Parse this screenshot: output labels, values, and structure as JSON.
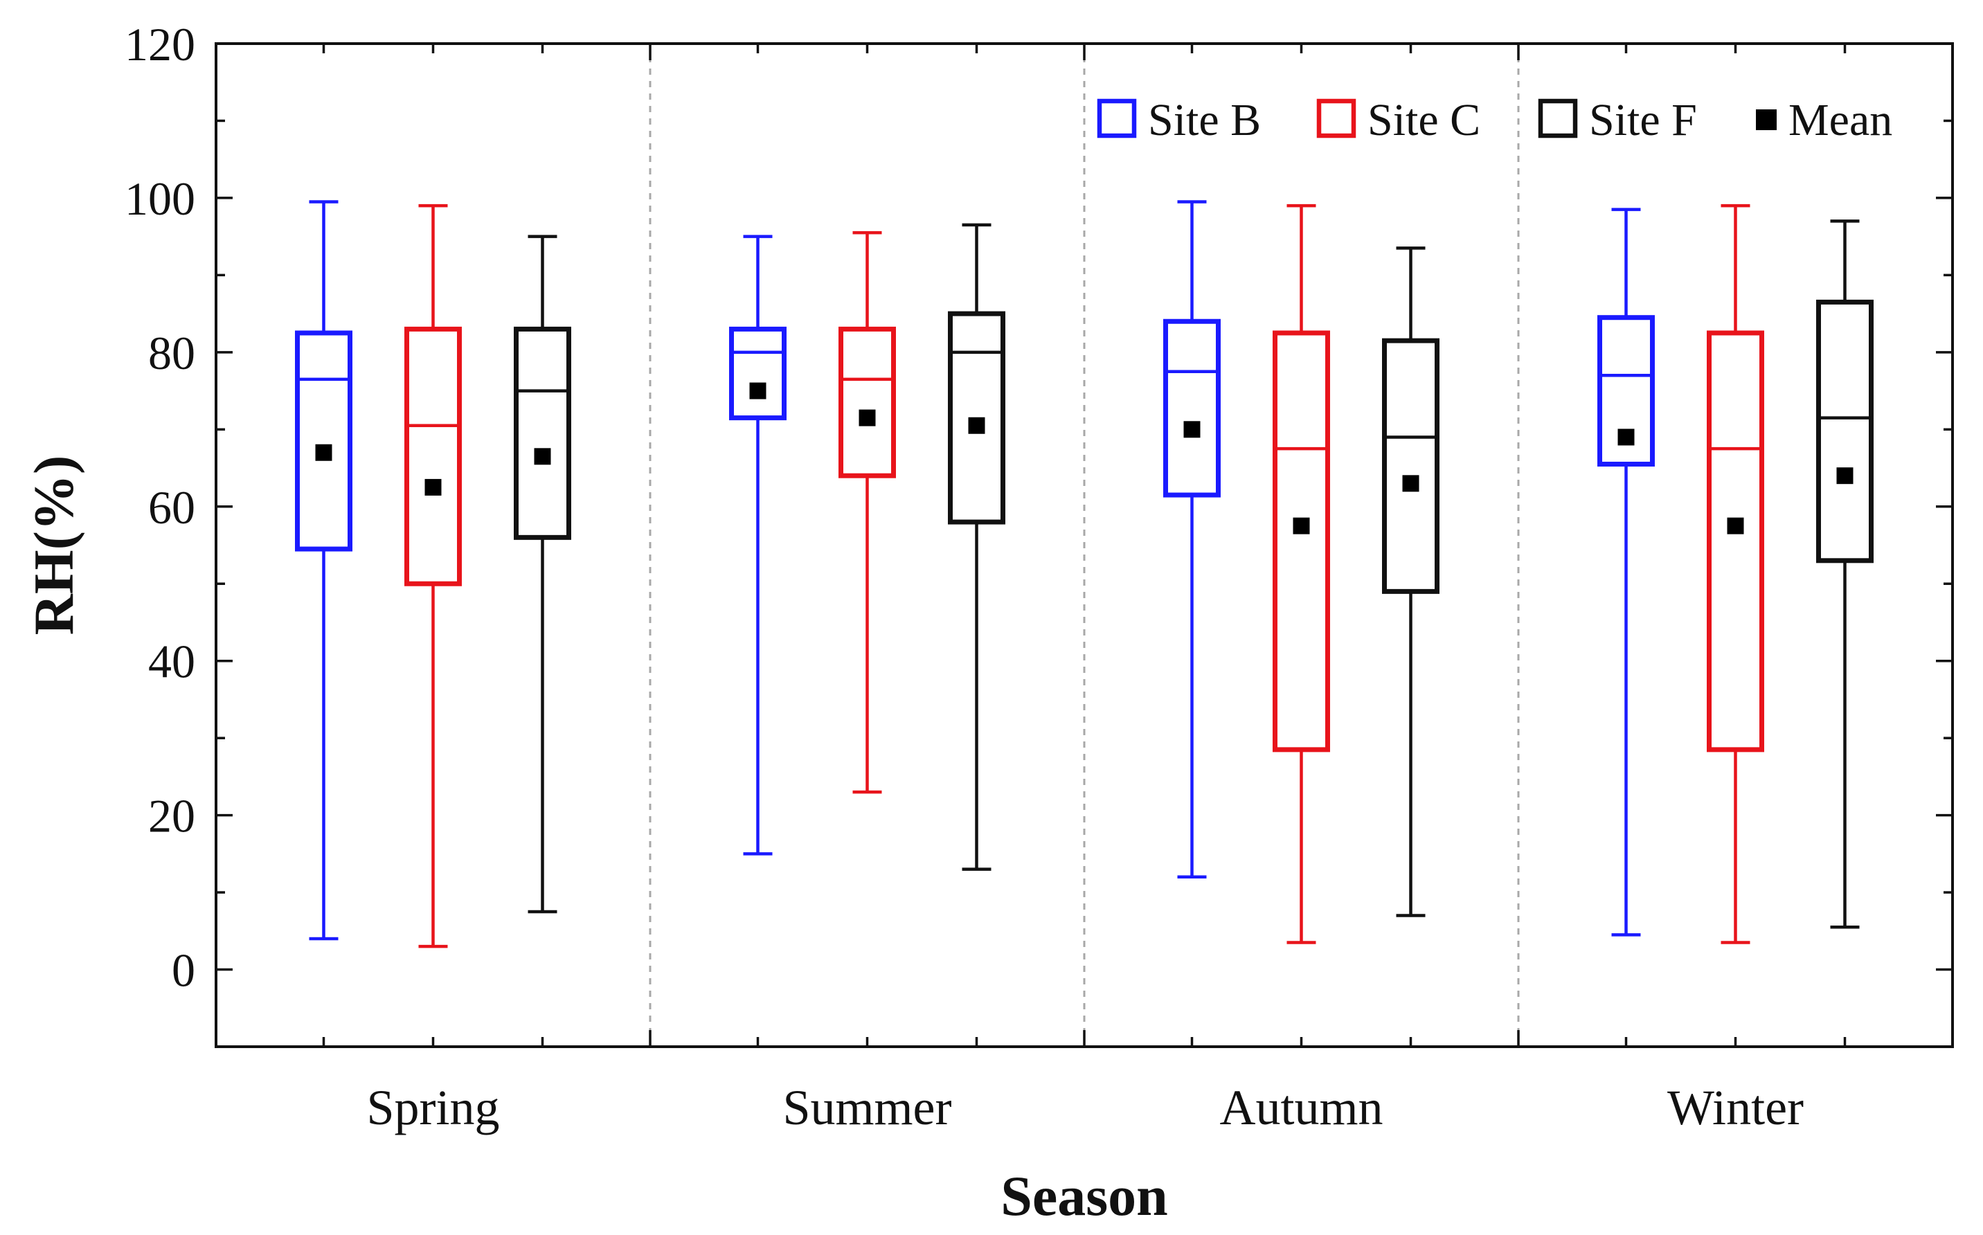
{
  "chart_data": {
    "type": "box",
    "title": "",
    "xlabel": "Season",
    "ylabel": "RH(%)",
    "ylim": [
      -10,
      120
    ],
    "yticks": [
      0,
      20,
      40,
      60,
      80,
      100,
      120
    ],
    "ytick_labels": [
      "0",
      "20",
      "40",
      "60",
      "80",
      "100",
      "120"
    ],
    "categories": [
      "Spring",
      "Summer",
      "Autumn",
      "Winter"
    ],
    "legend": {
      "position": "top-right",
      "entries": [
        "Site B",
        "Site C",
        "Site F",
        "Mean"
      ]
    },
    "series": [
      {
        "name": "Site B",
        "color": "#1a1aff",
        "values": [
          {
            "min": 4,
            "q1": 54.5,
            "median": 76.5,
            "q3": 82.5,
            "max": 99.5,
            "mean": 67
          },
          {
            "min": 15,
            "q1": 71.5,
            "median": 80,
            "q3": 83,
            "max": 95,
            "mean": 75
          },
          {
            "min": 12,
            "q1": 61.5,
            "median": 77.5,
            "q3": 84,
            "max": 99.5,
            "mean": 70
          },
          {
            "min": 4.5,
            "q1": 65.5,
            "median": 77,
            "q3": 84.5,
            "max": 98.5,
            "mean": 69
          }
        ]
      },
      {
        "name": "Site C",
        "color": "#e8141b",
        "values": [
          {
            "min": 3,
            "q1": 50,
            "median": 70.5,
            "q3": 83,
            "max": 99,
            "mean": 62.5
          },
          {
            "min": 23,
            "q1": 64,
            "median": 76.5,
            "q3": 83,
            "max": 95.5,
            "mean": 71.5
          },
          {
            "min": 3.5,
            "q1": 28.5,
            "median": 67.5,
            "q3": 82.5,
            "max": 99,
            "mean": 57.5
          },
          {
            "min": 3.5,
            "q1": 28.5,
            "median": 67.5,
            "q3": 82.5,
            "max": 99,
            "mean": 57.5
          }
        ]
      },
      {
        "name": "Site F",
        "color": "#111111",
        "values": [
          {
            "min": 7.5,
            "q1": 56,
            "median": 75,
            "q3": 83,
            "max": 95,
            "mean": 66.5
          },
          {
            "min": 13,
            "q1": 58,
            "median": 80,
            "q3": 85,
            "max": 96.5,
            "mean": 70.5
          },
          {
            "min": 7,
            "q1": 49,
            "median": 69,
            "q3": 81.5,
            "max": 93.5,
            "mean": 63
          },
          {
            "min": 5.5,
            "q1": 53,
            "median": 71.5,
            "q3": 86.5,
            "max": 97,
            "mean": 64
          }
        ]
      }
    ],
    "mean_color": "#000000"
  }
}
